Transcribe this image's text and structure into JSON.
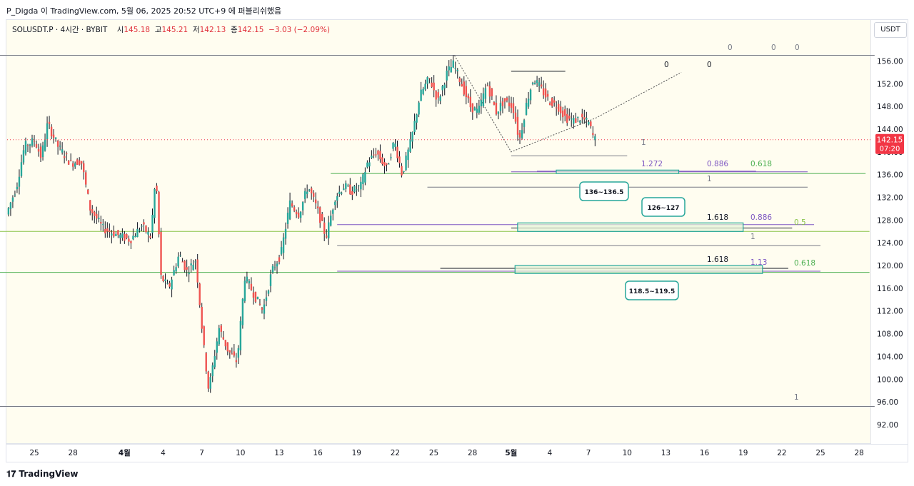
{
  "header": {
    "text": "P_Digda 이 TradingView.com, 5월 06, 2025 20:52 UTC+9 에 퍼블리쉬했음"
  },
  "legend": {
    "symbol": "SOLUSDT.P · 4시간 · BYBIT",
    "open_label": "시",
    "open": "145.18",
    "high_label": "고",
    "high": "145.21",
    "low_label": "저",
    "low": "142.13",
    "close_label": "종",
    "close": "142.15",
    "change": "−3.03 (−2.09%)"
  },
  "price_axis": {
    "unit": "USDT",
    "current_price": "142.15",
    "countdown": "07:20"
  },
  "footer": {
    "brand": "TradingView"
  },
  "colors": {
    "up": "#26a69a",
    "down": "#ef5350",
    "fib_green": "#4caf50",
    "fib_purple": "#7e57c2",
    "fib_olive": "#8bc34a",
    "box_border": "#26a69a",
    "box_fill": "#e6f4d7",
    "current_price": "#f23645"
  },
  "chart_data": {
    "type": "candlestick",
    "symbol": "SOLUSDT.P",
    "interval": "4시간",
    "exchange": "BYBIT",
    "ylim": [
      90,
      158
    ],
    "y_ticks": [
      92,
      96,
      100,
      104,
      108,
      112,
      116,
      120,
      124,
      128,
      132,
      136,
      140,
      144,
      148,
      152,
      156
    ],
    "x_ticks": [
      {
        "label": "25",
        "d": 0
      },
      {
        "label": "28",
        "d": 3
      },
      {
        "label": "4월",
        "d": 7
      },
      {
        "label": "4",
        "d": 10
      },
      {
        "label": "7",
        "d": 13
      },
      {
        "label": "10",
        "d": 16
      },
      {
        "label": "13",
        "d": 19
      },
      {
        "label": "16",
        "d": 22
      },
      {
        "label": "19",
        "d": 25
      },
      {
        "label": "22",
        "d": 28
      },
      {
        "label": "25",
        "d": 31
      },
      {
        "label": "28",
        "d": 34
      },
      {
        "label": "5월",
        "d": 37
      },
      {
        "label": "4",
        "d": 40
      },
      {
        "label": "7",
        "d": 43
      },
      {
        "label": "10",
        "d": 46
      },
      {
        "label": "13",
        "d": 49
      },
      {
        "label": "16",
        "d": 52
      },
      {
        "label": "19",
        "d": 55
      },
      {
        "label": "22",
        "d": 58
      },
      {
        "label": "25",
        "d": 61
      },
      {
        "label": "28",
        "d": 64
      }
    ],
    "x_bold_labels": [
      "4월",
      "5월"
    ],
    "path_points": [
      {
        "d": -2,
        "p": 129
      },
      {
        "d": -1.2,
        "p": 134
      },
      {
        "d": -0.6,
        "p": 141
      },
      {
        "d": 0.2,
        "p": 142
      },
      {
        "d": 0.7,
        "p": 139
      },
      {
        "d": 1.2,
        "p": 145
      },
      {
        "d": 2,
        "p": 141
      },
      {
        "d": 3,
        "p": 138
      },
      {
        "d": 3.8,
        "p": 138.5
      },
      {
        "d": 4.5,
        "p": 130
      },
      {
        "d": 5.5,
        "p": 126.5
      },
      {
        "d": 6.5,
        "p": 125.5
      },
      {
        "d": 7.6,
        "p": 124.5
      },
      {
        "d": 8.5,
        "p": 127
      },
      {
        "d": 9.2,
        "p": 125
      },
      {
        "d": 9.6,
        "p": 136
      },
      {
        "d": 10,
        "p": 118
      },
      {
        "d": 10.6,
        "p": 116
      },
      {
        "d": 11.4,
        "p": 122
      },
      {
        "d": 12,
        "p": 119
      },
      {
        "d": 12.7,
        "p": 121
      },
      {
        "d": 13.3,
        "p": 106
      },
      {
        "d": 13.7,
        "p": 98
      },
      {
        "d": 14.5,
        "p": 109
      },
      {
        "d": 15.2,
        "p": 105
      },
      {
        "d": 15.9,
        "p": 103
      },
      {
        "d": 16.5,
        "p": 118
      },
      {
        "d": 17.2,
        "p": 115
      },
      {
        "d": 17.9,
        "p": 112
      },
      {
        "d": 18.6,
        "p": 119
      },
      {
        "d": 19.3,
        "p": 122
      },
      {
        "d": 20,
        "p": 131
      },
      {
        "d": 20.7,
        "p": 129
      },
      {
        "d": 21.4,
        "p": 134
      },
      {
        "d": 22.1,
        "p": 130
      },
      {
        "d": 22.8,
        "p": 125
      },
      {
        "d": 23.5,
        "p": 132
      },
      {
        "d": 24.2,
        "p": 134
      },
      {
        "d": 24.8,
        "p": 133
      },
      {
        "d": 25.5,
        "p": 134
      },
      {
        "d": 26,
        "p": 138
      },
      {
        "d": 26.7,
        "p": 140
      },
      {
        "d": 27.5,
        "p": 137
      },
      {
        "d": 28.1,
        "p": 142
      },
      {
        "d": 28.7,
        "p": 136
      },
      {
        "d": 29.4,
        "p": 142
      },
      {
        "d": 30.1,
        "p": 150
      },
      {
        "d": 30.8,
        "p": 153
      },
      {
        "d": 31.5,
        "p": 149
      },
      {
        "d": 32.2,
        "p": 154
      },
      {
        "d": 32.7,
        "p": 155.5
      },
      {
        "d": 33.3,
        "p": 152
      },
      {
        "d": 34,
        "p": 148
      },
      {
        "d": 34.6,
        "p": 147
      },
      {
        "d": 35.3,
        "p": 152
      },
      {
        "d": 36,
        "p": 147
      },
      {
        "d": 36.6,
        "p": 149
      },
      {
        "d": 37.3,
        "p": 148
      },
      {
        "d": 37.8,
        "p": 142
      },
      {
        "d": 38.4,
        "p": 149
      },
      {
        "d": 38.9,
        "p": 153
      },
      {
        "d": 39.5,
        "p": 151
      },
      {
        "d": 40.1,
        "p": 149
      },
      {
        "d": 40.8,
        "p": 148
      },
      {
        "d": 41.4,
        "p": 146
      },
      {
        "d": 42,
        "p": 145.5
      },
      {
        "d": 42.6,
        "p": 146
      },
      {
        "d": 43.2,
        "p": 145
      },
      {
        "d": 43.6,
        "p": 142.2
      }
    ],
    "fib_levels": [
      {
        "label": "0",
        "price": 157,
        "d_start": -4.4,
        "d_end": 65.2,
        "color": "#787b86"
      },
      {
        "label": "0",
        "price": 154.2,
        "d_start": 37,
        "d_end": 41.2,
        "color": "#131722"
      },
      {
        "label": "1",
        "price": 139.3,
        "d_start": 37,
        "d_end": 46,
        "color": "#787b86"
      },
      {
        "label": "0.618",
        "price": 136.2,
        "d_start": 23,
        "d_end": 64.5,
        "color": "#4caf50"
      },
      {
        "label": "0.886",
        "price": 136.5,
        "d_start": 37,
        "d_end": 60,
        "color": "#7e57c2"
      },
      {
        "label": "1.272",
        "price": 136.6,
        "d_start": 39,
        "d_end": 56,
        "color": "#7e57c2"
      },
      {
        "label": "1",
        "price": 133.8,
        "d_start": 30.5,
        "d_end": 60,
        "color": "#787b86"
      },
      {
        "label": "0.886",
        "price": 127.2,
        "d_start": 23.5,
        "d_end": 60.5,
        "color": "#7e57c2"
      },
      {
        "label": "1.618",
        "price": 126.6,
        "d_start": 37,
        "d_end": 58.8,
        "color": "#131722"
      },
      {
        "label": "0.5",
        "price": 126,
        "d_start": -4.4,
        "d_end": 64.8,
        "color": "#8bc34a"
      },
      {
        "label": "1",
        "price": 123.5,
        "d_start": 23.5,
        "d_end": 61,
        "color": "#787b86"
      },
      {
        "label": "1.618",
        "price": 119.5,
        "d_start": 31.5,
        "d_end": 58.5,
        "color": "#131722"
      },
      {
        "label": "0.618",
        "price": 118.8,
        "d_start": -4.4,
        "d_end": 64.8,
        "color": "#4caf50"
      },
      {
        "label": "1.13",
        "price": 119,
        "d_start": 23.5,
        "d_end": 61,
        "color": "#7e57c2"
      },
      {
        "label": "1",
        "price": 95.2,
        "d_start": -4.4,
        "d_end": 65.2,
        "color": "#787b86"
      }
    ],
    "target_zones": [
      {
        "label": "136~136.5",
        "p_low": 136.2,
        "p_high": 136.8,
        "d_start": 40.5,
        "d_end": 50
      },
      {
        "label": "126~127",
        "p_low": 126,
        "p_high": 127.5,
        "d_start": 37.5,
        "d_end": 55
      },
      {
        "label": "118.5~119.5",
        "p_low": 118.6,
        "p_high": 120,
        "d_start": 37.3,
        "d_end": 56.5
      }
    ],
    "dotted_projection": [
      {
        "d": 32.6,
        "p": 157
      },
      {
        "d": 37,
        "p": 140
      },
      {
        "d": 43.6,
        "p": 146
      },
      {
        "d": 50.2,
        "p": 154
      }
    ],
    "current_price": 142.15
  }
}
